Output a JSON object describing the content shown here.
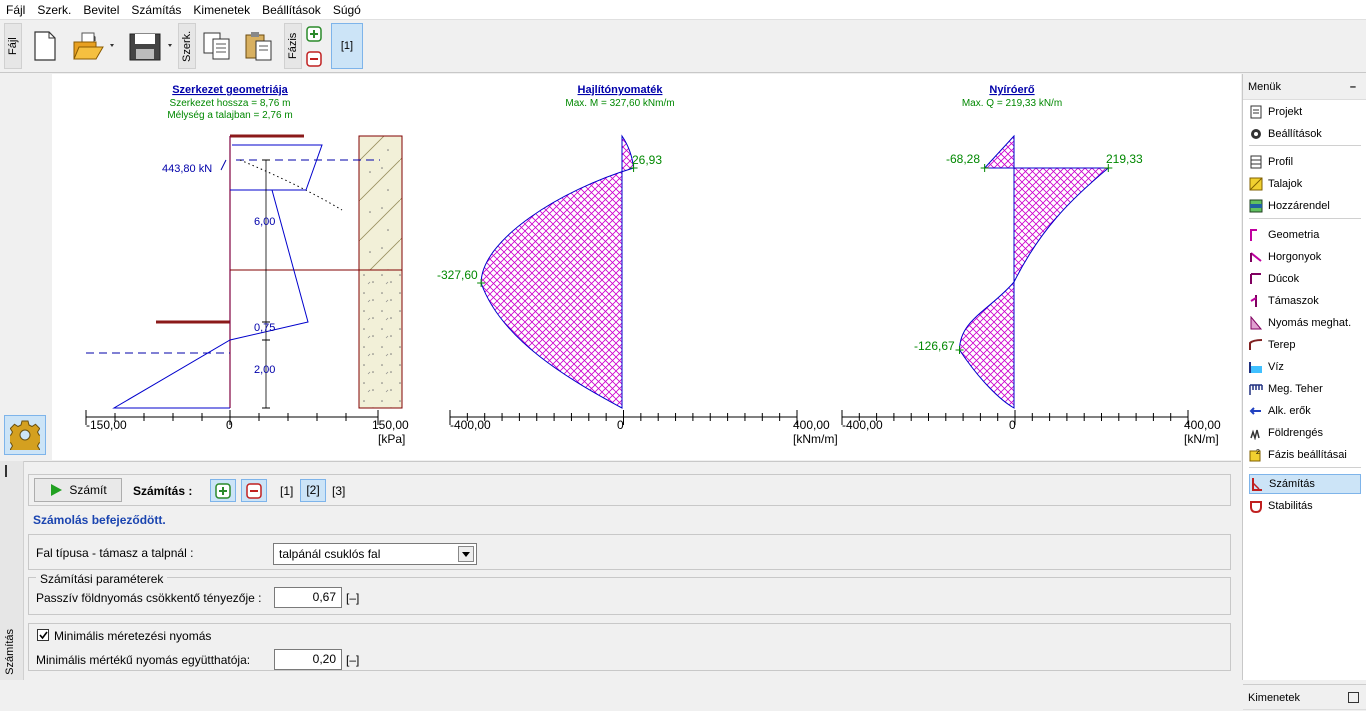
{
  "menu": [
    {
      "label": "Fájl"
    },
    {
      "label": "Szerk."
    },
    {
      "label": "Bevitel"
    },
    {
      "label": "Számítás"
    },
    {
      "label": "Kimenetek"
    },
    {
      "label": "Beállítások"
    },
    {
      "label": "Súgó"
    }
  ],
  "toolbar": {
    "file_group_label": "Fájl",
    "edit_group_label": "Szerk.",
    "phase_group_label": "Fázis",
    "phase_button_label": "[1]"
  },
  "charts": {
    "geometry": {
      "title": "Szerkezet geometriája",
      "line1": "Szerkezet hossza = 8,76 m",
      "line2": "Mélység a talajban = 2,76 m",
      "anchor_label": "443,80 kN",
      "dim1": "6,00",
      "dim2": "0,75",
      "dim3": "2,00",
      "axis_min": "-150,00",
      "axis_zero": "0",
      "axis_max": "150,00",
      "axis_unit": "[kPa]"
    },
    "moment": {
      "title": "Hajlítónyomaték",
      "subtitle": "Max. M = 327,60 kNm/m",
      "val_top": "26,93",
      "val_min": "-327,60",
      "axis_min": "-400,00",
      "axis_zero": "0",
      "axis_max": "400,00",
      "axis_unit": "[kNm/m]"
    },
    "shear": {
      "title": "Nyíróerő",
      "subtitle": "Max. Q = 219,33 kN/m",
      "val_left": "-68,28",
      "val_right": "219,33",
      "val_low": "-126,67",
      "axis_min": "-400,00",
      "axis_zero": "0",
      "axis_max": "400,00",
      "axis_unit": "[kN/m]"
    }
  },
  "chart_data": [
    {
      "type": "line",
      "title": "Hajlítónyomaték",
      "series": [
        {
          "values": [
            0,
            26.93,
            -327.6,
            0
          ]
        }
      ],
      "xlim": [
        -400,
        400
      ],
      "xlabel": "[kNm/m]"
    },
    {
      "type": "line",
      "title": "Nyíróerő",
      "series": [
        {
          "values": [
            0,
            -68.28,
            219.33,
            -126.67,
            0
          ]
        }
      ],
      "xlim": [
        -400,
        400
      ],
      "xlabel": "[kN/m]"
    }
  ],
  "right_panel": {
    "menus_header": "Menük",
    "items": [
      {
        "label": "Projekt",
        "icon": "project-icon"
      },
      {
        "label": "Beállítások",
        "icon": "settings-icon"
      },
      {
        "label": "Profil",
        "icon": "profile-icon"
      },
      {
        "label": "Talajok",
        "icon": "soils-icon"
      },
      {
        "label": "Hozzárendel",
        "icon": "assign-icon"
      },
      {
        "label": "Geometria",
        "icon": "geometry-icon"
      },
      {
        "label": "Horgonyok",
        "icon": "anchors-icon"
      },
      {
        "label": "Dúcok",
        "icon": "struts-icon"
      },
      {
        "label": "Támaszok",
        "icon": "supports-icon"
      },
      {
        "label": "Nyomás meghat.",
        "icon": "pressure-icon"
      },
      {
        "label": "Terep",
        "icon": "terrain-icon"
      },
      {
        "label": "Víz",
        "icon": "water-icon"
      },
      {
        "label": "Meg. Teher",
        "icon": "surcharge-icon"
      },
      {
        "label": "Alk. erők",
        "icon": "applied-forces-icon"
      },
      {
        "label": "Földrengés",
        "icon": "earthquake-icon"
      },
      {
        "label": "Fázis beállításai",
        "icon": "phase-settings-icon"
      },
      {
        "label": "Számítás",
        "icon": "analysis-icon"
      },
      {
        "label": "Stabilitás",
        "icon": "stability-icon"
      }
    ],
    "outputs_header": "Kimenetek"
  },
  "bottom": {
    "side_label": "Számítás",
    "calc_button": "Számít",
    "calc_label": "Számítás :",
    "phase1": "[1]",
    "phase2": "[2]",
    "phase3": "[3]",
    "status": "Számolás befejeződött.",
    "wall_type_label": "Fal típusa - támasz a talpnál :",
    "wall_type_value": "talpánál csuklós fal",
    "calc_params_title": "Számítási paraméterek",
    "passive_label": "Passzív földnyomás csökkentő tényezője :",
    "passive_value": "0,67",
    "passive_unit": "[–]",
    "min_pressure_check": "Minimális méretezési nyomás",
    "min_coeff_label": "Minimális mértékű nyomás együtthatója:",
    "min_coeff_value": "0,20",
    "min_coeff_unit": "[–]"
  }
}
